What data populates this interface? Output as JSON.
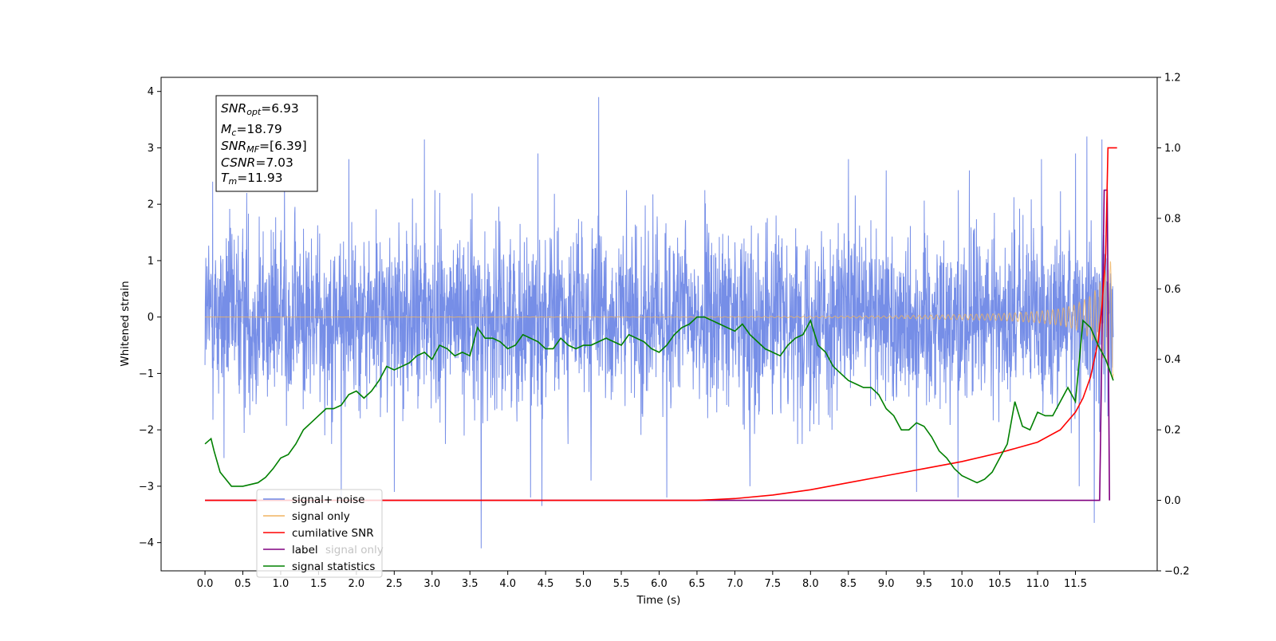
{
  "chart_data": {
    "type": "line",
    "xlabel": "Time (s)",
    "ylabel": "Whitened strain",
    "xlim": [
      -0.58,
      12.58
    ],
    "ylim_left": [
      -4.5,
      4.25
    ],
    "ylim_right": [
      -0.2,
      1.2
    ],
    "x_ticks": [
      "0.0",
      "0.5",
      "1.0",
      "1.5",
      "2.0",
      "2.5",
      "3.0",
      "3.5",
      "4.0",
      "4.5",
      "5.0",
      "5.5",
      "6.0",
      "6.5",
      "7.0",
      "7.5",
      "8.0",
      "8.5",
      "9.0",
      "9.5",
      "10.0",
      "10.5",
      "11.0",
      "11.5"
    ],
    "y_ticks_left": [
      "4",
      "3",
      "2",
      "1",
      "0",
      "−1",
      "−2",
      "−3",
      "−4"
    ],
    "y_ticks_right": [
      "1.2",
      "1.0",
      "0.8",
      "0.6",
      "0.4",
      "0.2",
      "0.0",
      "−0.2"
    ],
    "annotation": {
      "lines": [
        {
          "sym": "SNR",
          "sub": "opt",
          "val": "=6.93"
        },
        {
          "sym": "M",
          "sub": "c",
          "val": "=18.79"
        },
        {
          "sym": "SNR",
          "sub": "MF",
          "val": "=[6.39]"
        },
        {
          "sym": "CSNR",
          "sub": "",
          "val": "=7.03"
        },
        {
          "sym": "T",
          "sub": "m",
          "val": "=11.93"
        }
      ]
    },
    "legend": {
      "position": "lower-left",
      "entries": [
        {
          "label": "signal+ noise",
          "color": "#6f88e6"
        },
        {
          "label": "signal only",
          "color": "#f0b460"
        },
        {
          "label": "cumilative SNR",
          "color": "#ff0000"
        },
        {
          "label": "label",
          "color": "#800080"
        },
        {
          "label": "signal statistics",
          "color": "#008000"
        }
      ],
      "hidden_behind": [
        "signal only"
      ]
    },
    "series": [
      {
        "name": "signal+ noise",
        "axis": "left",
        "color": "#6f88e6",
        "x_range": [
          0.0,
          12.0
        ],
        "typical_band": [
          -1.8,
          1.8
        ],
        "upper_peaks": [
          [
            0.1,
            2.4
          ],
          [
            0.55,
            2.2
          ],
          [
            1.05,
            2.5
          ],
          [
            1.9,
            2.8
          ],
          [
            2.9,
            3.15
          ],
          [
            3.1,
            2.2
          ],
          [
            4.4,
            2.9
          ],
          [
            5.2,
            3.9
          ],
          [
            6.1,
            2.6
          ],
          [
            7.2,
            2.5
          ],
          [
            8.5,
            2.8
          ],
          [
            9.0,
            2.6
          ],
          [
            10.1,
            2.6
          ],
          [
            11.05,
            2.8
          ],
          [
            11.5,
            2.9
          ],
          [
            11.65,
            3.2
          ],
          [
            11.85,
            3.15
          ]
        ],
        "lower_peaks": [
          [
            0.25,
            -2.5
          ],
          [
            1.8,
            -3.3
          ],
          [
            2.5,
            -3.1
          ],
          [
            3.65,
            -4.1
          ],
          [
            4.3,
            -3.2
          ],
          [
            4.45,
            -3.35
          ],
          [
            5.1,
            -2.9
          ],
          [
            6.1,
            -3.2
          ],
          [
            7.2,
            -3.0
          ],
          [
            9.4,
            -3.1
          ],
          [
            9.95,
            -3.2
          ],
          [
            11.55,
            -3.0
          ],
          [
            11.75,
            -3.65
          ]
        ]
      },
      {
        "name": "signal only",
        "axis": "left",
        "color": "#f0b460",
        "x_range": [
          0.0,
          12.0
        ],
        "envelope": {
          "x": [
            0.0,
            6.5,
            9.0,
            10.5,
            11.0,
            11.3,
            11.5,
            11.7,
            11.8,
            11.9,
            12.0
          ],
          "amp": [
            0.0,
            0.005,
            0.02,
            0.06,
            0.1,
            0.15,
            0.22,
            0.38,
            0.55,
            0.85,
            1.1
          ]
        }
      },
      {
        "name": "cumilative SNR",
        "axis": "right",
        "color": "#ff0000",
        "x": [
          0.0,
          6.5,
          7.0,
          7.5,
          8.0,
          8.5,
          9.0,
          9.5,
          10.0,
          10.5,
          11.0,
          11.3,
          11.5,
          11.6,
          11.7,
          11.8,
          11.85,
          11.9,
          11.93,
          12.05
        ],
        "values": [
          0.0,
          0.0,
          0.005,
          0.015,
          0.03,
          0.05,
          0.07,
          0.09,
          0.11,
          0.135,
          0.165,
          0.2,
          0.25,
          0.29,
          0.35,
          0.45,
          0.55,
          0.7,
          1.0,
          1.0
        ]
      },
      {
        "name": "label",
        "axis": "right",
        "color": "#800080",
        "x": [
          0.0,
          11.82,
          11.88,
          11.92,
          11.95
        ],
        "values": [
          0.0,
          0.0,
          0.88,
          0.88,
          0.0
        ]
      },
      {
        "name": "signal statistics",
        "axis": "right",
        "color": "#008000",
        "x": [
          0.0,
          0.08,
          0.12,
          0.2,
          0.35,
          0.5,
          0.7,
          0.8,
          0.9,
          1.0,
          1.1,
          1.2,
          1.3,
          1.4,
          1.5,
          1.6,
          1.7,
          1.8,
          1.9,
          2.0,
          2.1,
          2.2,
          2.3,
          2.4,
          2.5,
          2.6,
          2.7,
          2.8,
          2.9,
          3.0,
          3.1,
          3.2,
          3.3,
          3.4,
          3.5,
          3.6,
          3.7,
          3.8,
          3.9,
          4.0,
          4.1,
          4.2,
          4.3,
          4.4,
          4.5,
          4.6,
          4.7,
          4.8,
          4.9,
          5.0,
          5.1,
          5.2,
          5.3,
          5.4,
          5.5,
          5.6,
          5.7,
          5.8,
          5.9,
          6.0,
          6.1,
          6.2,
          6.3,
          6.4,
          6.5,
          6.6,
          6.7,
          6.8,
          6.9,
          7.0,
          7.1,
          7.2,
          7.3,
          7.4,
          7.5,
          7.6,
          7.7,
          7.8,
          7.9,
          8.0,
          8.1,
          8.2,
          8.3,
          8.4,
          8.5,
          8.6,
          8.7,
          8.8,
          8.9,
          9.0,
          9.1,
          9.2,
          9.3,
          9.4,
          9.5,
          9.6,
          9.7,
          9.8,
          9.9,
          10.0,
          10.1,
          10.2,
          10.3,
          10.4,
          10.5,
          10.6,
          10.7,
          10.8,
          10.9,
          11.0,
          11.1,
          11.2,
          11.3,
          11.4,
          11.5,
          11.6,
          11.7,
          11.8,
          11.9,
          12.0
        ],
        "values": [
          0.16,
          0.175,
          0.14,
          0.08,
          0.04,
          0.04,
          0.05,
          0.065,
          0.09,
          0.12,
          0.13,
          0.16,
          0.2,
          0.22,
          0.24,
          0.26,
          0.26,
          0.27,
          0.3,
          0.31,
          0.29,
          0.31,
          0.34,
          0.38,
          0.37,
          0.38,
          0.39,
          0.41,
          0.42,
          0.4,
          0.44,
          0.43,
          0.41,
          0.42,
          0.41,
          0.49,
          0.46,
          0.46,
          0.45,
          0.43,
          0.44,
          0.47,
          0.46,
          0.45,
          0.43,
          0.43,
          0.46,
          0.44,
          0.43,
          0.44,
          0.44,
          0.45,
          0.46,
          0.45,
          0.44,
          0.47,
          0.46,
          0.45,
          0.43,
          0.42,
          0.44,
          0.47,
          0.49,
          0.5,
          0.52,
          0.52,
          0.51,
          0.5,
          0.49,
          0.48,
          0.5,
          0.47,
          0.45,
          0.43,
          0.42,
          0.41,
          0.44,
          0.46,
          0.47,
          0.51,
          0.44,
          0.42,
          0.38,
          0.36,
          0.34,
          0.33,
          0.32,
          0.32,
          0.3,
          0.26,
          0.24,
          0.2,
          0.2,
          0.22,
          0.21,
          0.18,
          0.14,
          0.12,
          0.09,
          0.07,
          0.06,
          0.05,
          0.06,
          0.08,
          0.12,
          0.16,
          0.28,
          0.21,
          0.2,
          0.25,
          0.24,
          0.24,
          0.28,
          0.32,
          0.28,
          0.51,
          0.49,
          0.44,
          0.4,
          0.34
        ]
      }
    ]
  }
}
